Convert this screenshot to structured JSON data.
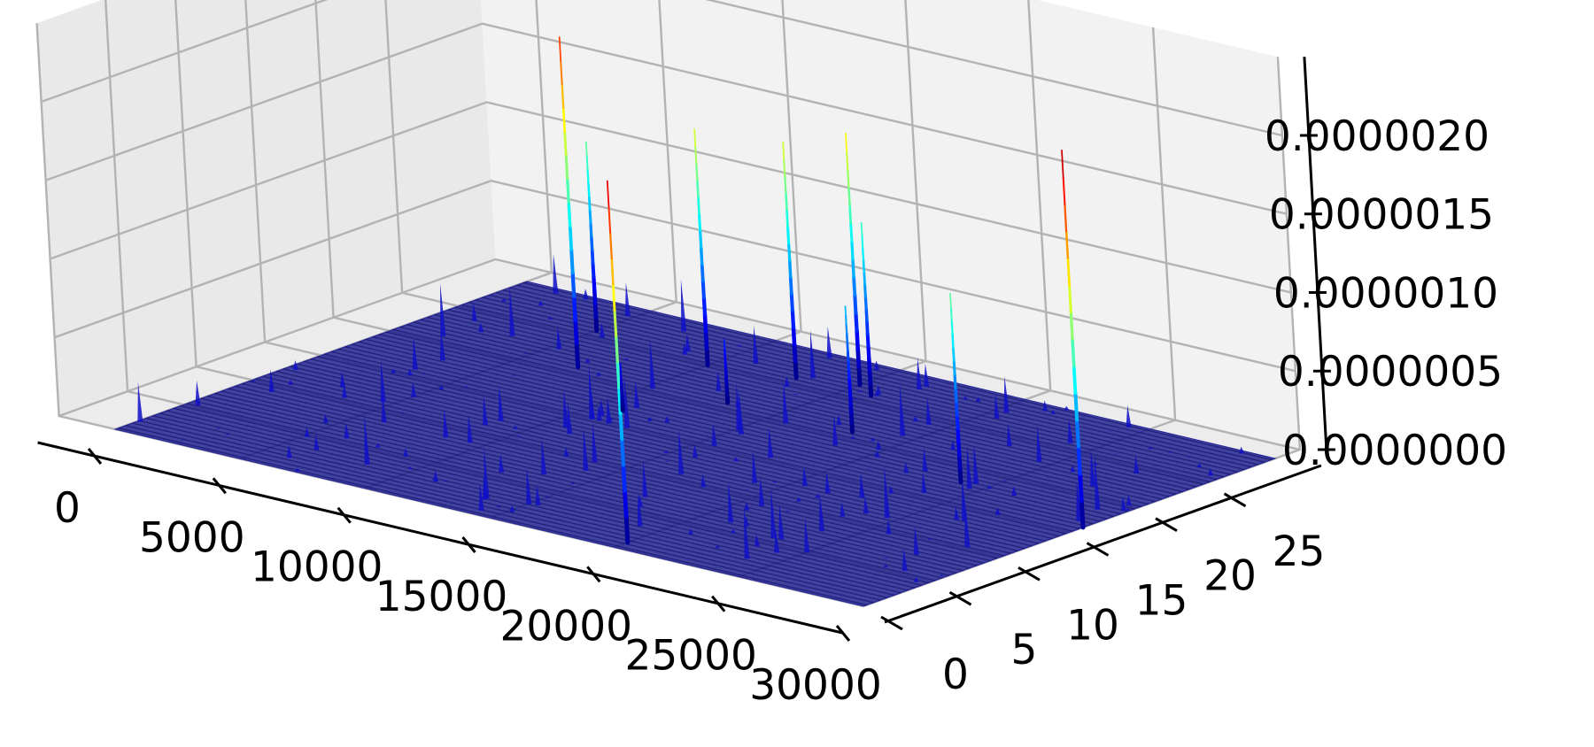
{
  "chart_data": {
    "type": "surface3d",
    "colormap": "jet",
    "grid": true,
    "x_axis": {
      "range": [
        0,
        30000
      ],
      "ticks": [
        0,
        5000,
        10000,
        15000,
        20000,
        25000,
        30000
      ],
      "tick_labels": [
        "0",
        "5000",
        "10000",
        "15000",
        "20000",
        "25000",
        "30000"
      ]
    },
    "y_axis": {
      "range": [
        0,
        30
      ],
      "ticks": [
        0,
        5,
        10,
        15,
        20,
        25
      ],
      "tick_labels": [
        "0",
        "5",
        "10",
        "15",
        "20",
        "25"
      ]
    },
    "z_axis": {
      "range": [
        0,
        2e-06
      ],
      "ticks": [
        0,
        5e-07,
        1e-06,
        1.5e-06,
        2e-06
      ],
      "tick_labels": [
        "0.0000000",
        "0.0000005",
        "0.0000010",
        "0.0000015",
        "0.0000020"
      ]
    },
    "peaks": [
      {
        "x": 20000,
        "y": 1,
        "z": 2.3e-06
      },
      {
        "x": 7000,
        "y": 21,
        "z": 2.1e-06
      },
      {
        "x": 5000,
        "y": 26,
        "z": 1.2e-06
      },
      {
        "x": 10000,
        "y": 25,
        "z": 1.5e-06
      },
      {
        "x": 18000,
        "y": 21,
        "z": 8e-07
      },
      {
        "x": 13000,
        "y": 26,
        "z": 1.5e-06
      },
      {
        "x": 15000,
        "y": 27,
        "z": 1.6e-06
      },
      {
        "x": 16000,
        "y": 26,
        "z": 1.1e-06
      },
      {
        "x": 24000,
        "y": 18,
        "z": 1.2e-06
      },
      {
        "x": 30000,
        "y": 16,
        "z": 2.4e-06
      },
      {
        "x": 13000,
        "y": 21,
        "z": 4e-07
      },
      {
        "x": 11000,
        "y": 17,
        "z": 3e-07
      }
    ]
  }
}
